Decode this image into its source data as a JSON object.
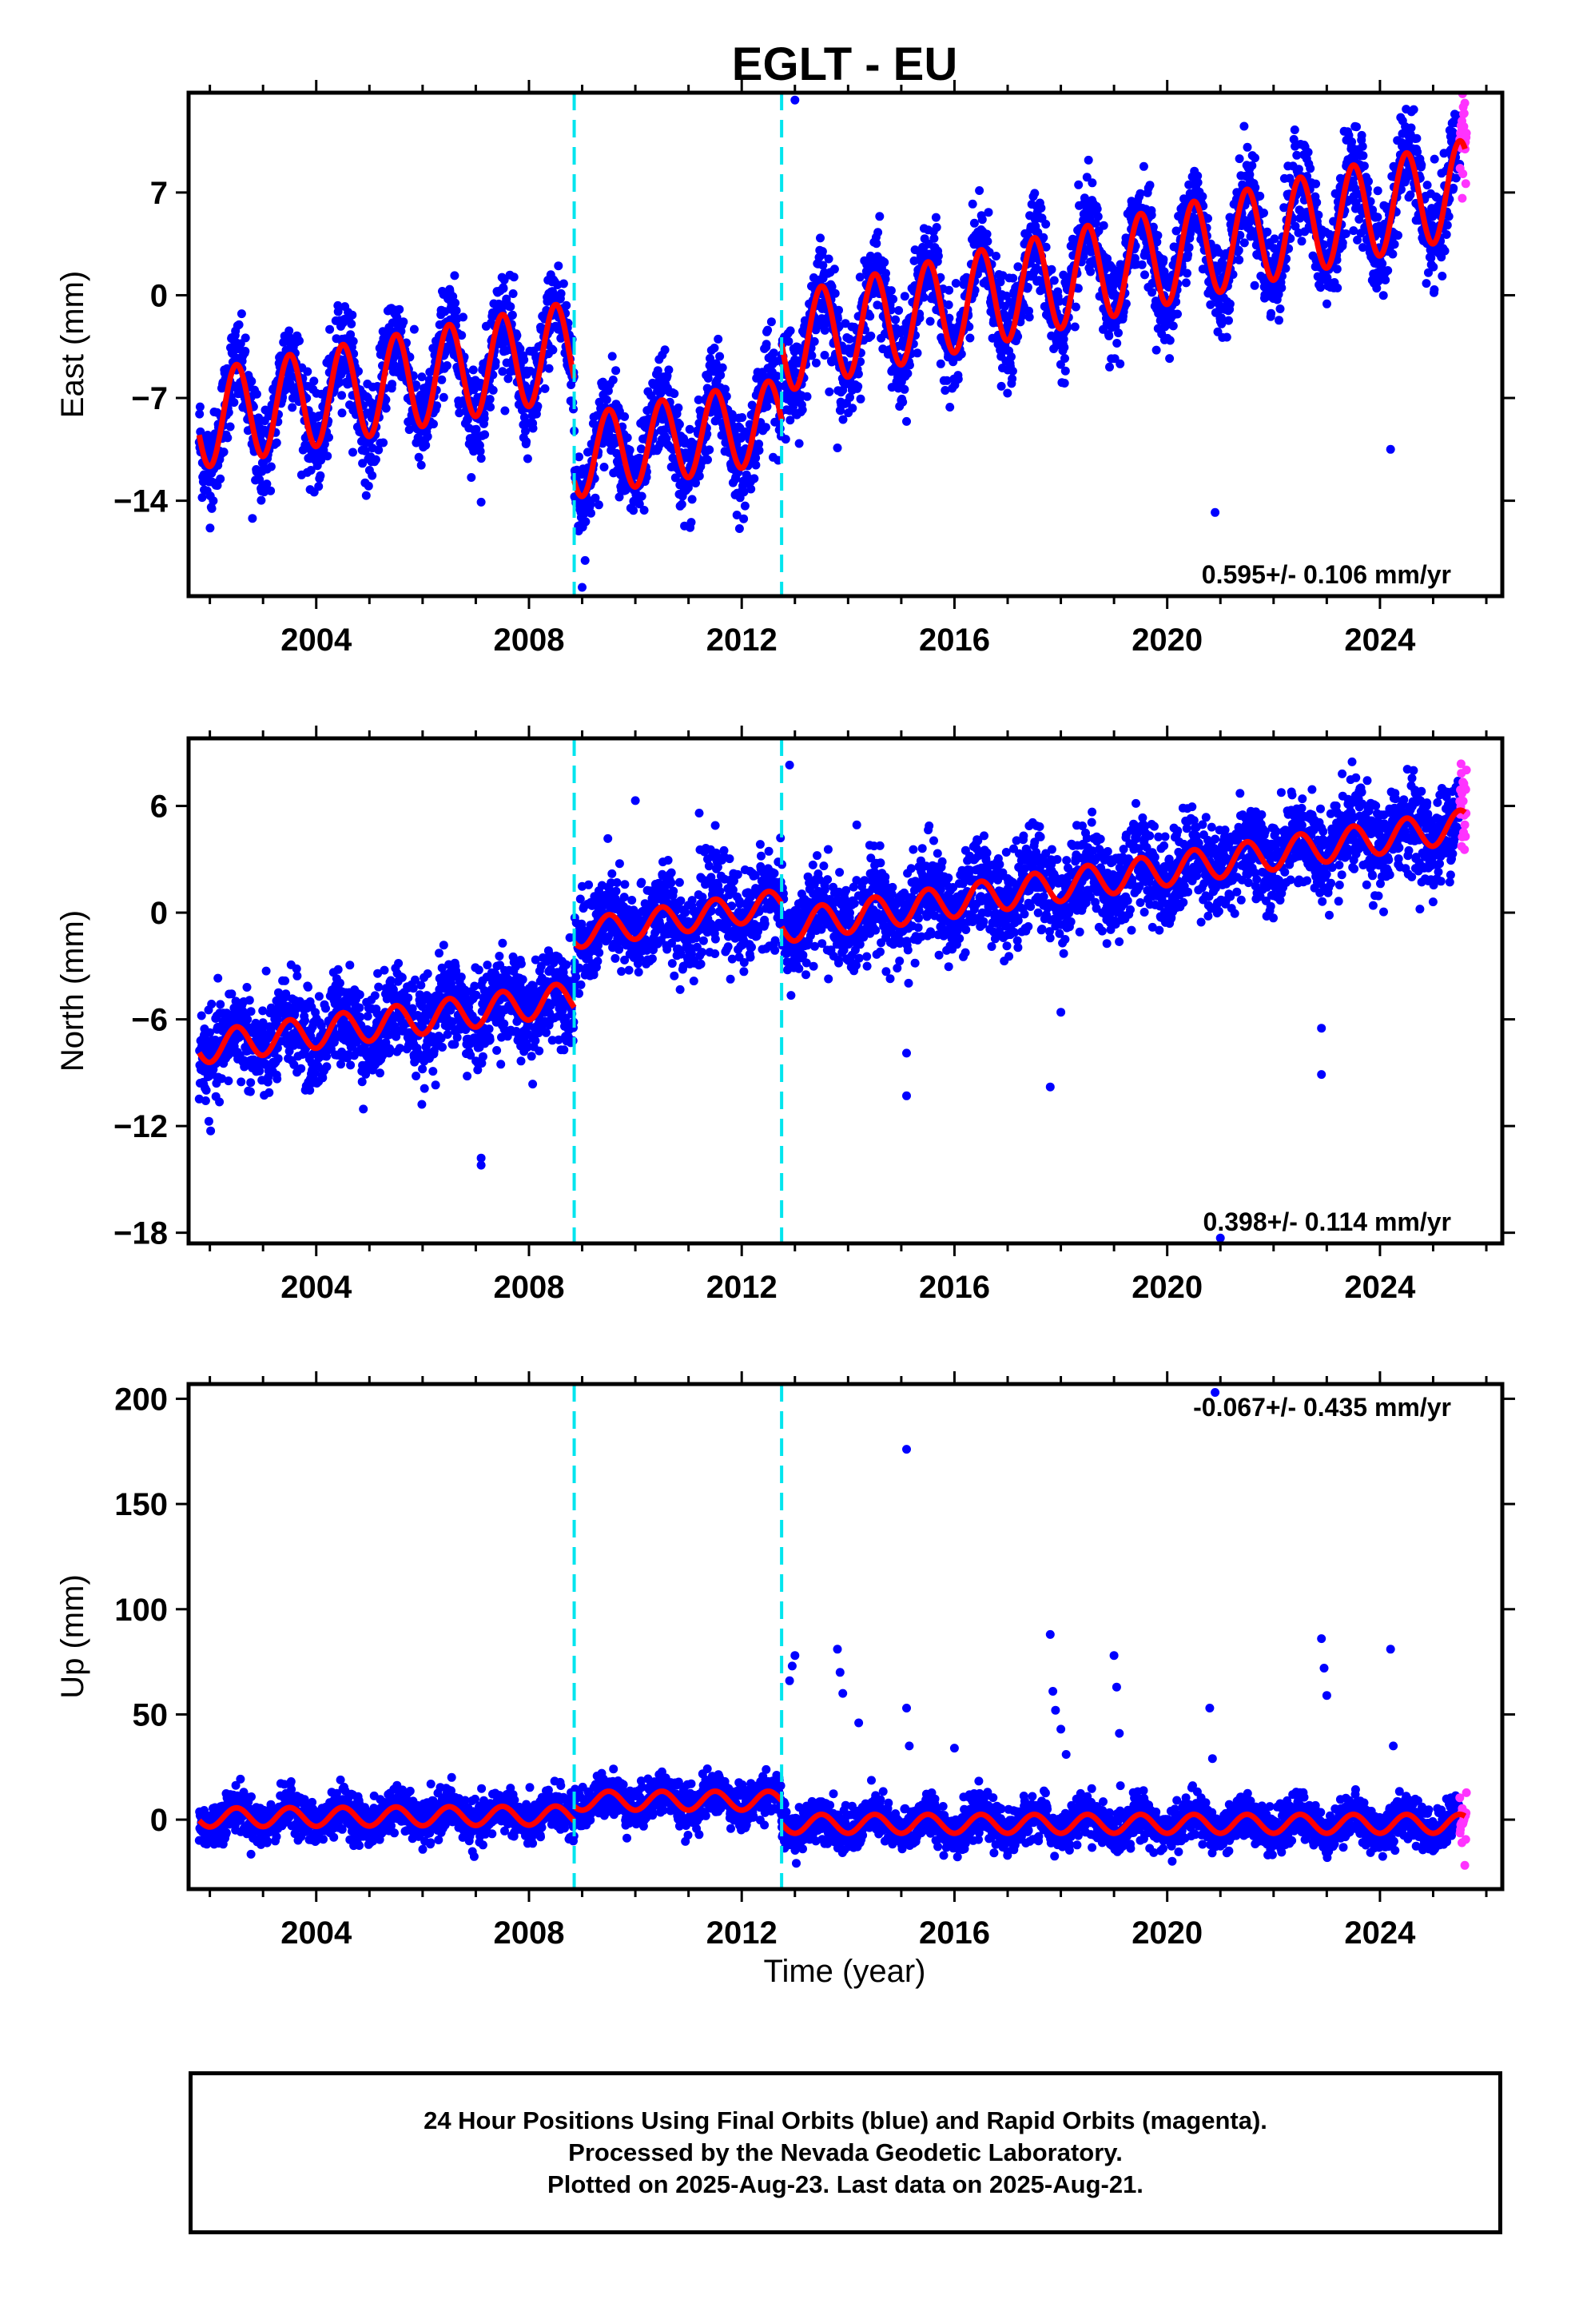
{
  "title": "EGLT - EU",
  "x_axis_title": "Time (year)",
  "footer_lines": [
    "24 Hour Positions Using Final Orbits (blue) and Rapid Orbits (magenta).",
    "Processed by the Nevada Geodetic Laboratory.",
    "Plotted on 2025-Aug-23. Last data on 2025-Aug-21."
  ],
  "colors": {
    "final_orbits": "#0000ff",
    "rapid_orbits": "#ff33ff",
    "model_fit": "#ff0000",
    "offset_lines": "#00e5ee"
  },
  "chart_data": [
    {
      "type": "scatter",
      "component": "east",
      "ylabel": "East (mm)",
      "xlim": [
        2001.6,
        2026.3
      ],
      "ylim": [
        -20.5,
        13.8
      ],
      "xticks": [
        2004,
        2008,
        2012,
        2016,
        2020,
        2024
      ],
      "yticks": [
        -14,
        -7,
        0,
        7
      ],
      "rate_label": "0.595+/- 0.106 mm/yr",
      "rate_position": "bottom-right",
      "offset_epochs": [
        2008.85,
        2012.75
      ],
      "series": [
        {
          "role": "final orbits",
          "color": "#0000ff",
          "x_range": [
            2001.8,
            2025.5
          ],
          "scatter_sd": 1.6
        },
        {
          "role": "rapid orbits",
          "color": "#ff33ff",
          "x_range": [
            2025.5,
            2025.63
          ]
        },
        {
          "role": "model fit",
          "color": "#ff0000",
          "segments": [
            {
              "x_range": [
                2001.8,
                2008.85
              ],
              "start_y": -8.5,
              "end_y": -3.7,
              "seasonal_amplitude": 3.3
            },
            {
              "x_range": [
                2008.85,
                2012.75
              ],
              "start_y": -11.0,
              "end_y": -8.5,
              "seasonal_amplitude": 2.8
            },
            {
              "x_range": [
                2012.75,
                2025.6
              ],
              "start_y": -3.3,
              "end_y": 7.3,
              "seasonal_amplitude": 3.3
            }
          ]
        }
      ],
      "outliers": [
        [
          2002.8,
          -15.2
        ],
        [
          2007.1,
          -14.1
        ],
        [
          2013.8,
          -10.4
        ],
        [
          2015.1,
          -8.6
        ],
        [
          2020.9,
          -14.8
        ],
        [
          2024.2,
          -10.5
        ],
        [
          2009.0,
          -19.9
        ],
        [
          2013.0,
          13.3
        ]
      ]
    },
    {
      "type": "scatter",
      "component": "north",
      "ylabel": "North (mm)",
      "xlim": [
        2001.6,
        2026.3
      ],
      "ylim": [
        -18.6,
        9.8
      ],
      "xticks": [
        2004,
        2008,
        2012,
        2016,
        2020,
        2024
      ],
      "yticks": [
        -18,
        -12,
        -6,
        0,
        6
      ],
      "rate_label": "0.398+/- 0.114 mm/yr",
      "rate_position": "bottom-right",
      "offset_epochs": [
        2008.85,
        2012.75
      ],
      "series": [
        {
          "role": "final orbits",
          "color": "#0000ff",
          "x_range": [
            2001.8,
            2025.5
          ],
          "scatter_sd": 1.3
        },
        {
          "role": "rapid orbits",
          "color": "#ff33ff",
          "x_range": [
            2025.5,
            2025.63
          ]
        },
        {
          "role": "model fit",
          "color": "#ff0000",
          "segments": [
            {
              "x_range": [
                2001.8,
                2008.85
              ],
              "start_y": -7.6,
              "end_y": -4.8,
              "seasonal_amplitude": 0.9
            },
            {
              "x_range": [
                2008.85,
                2012.75
              ],
              "start_y": -1.2,
              "end_y": 0.5,
              "seasonal_amplitude": 0.8
            },
            {
              "x_range": [
                2012.75,
                2025.6
              ],
              "start_y": -0.8,
              "end_y": 4.9,
              "seasonal_amplitude": 0.9
            }
          ]
        }
      ],
      "outliers": [
        [
          2007.1,
          -13.8
        ],
        [
          2007.1,
          -14.2
        ],
        [
          2010.0,
          6.3
        ],
        [
          2011.2,
          5.6
        ],
        [
          2015.1,
          -7.9
        ],
        [
          2015.1,
          -10.3
        ],
        [
          2017.8,
          -9.8
        ],
        [
          2018.0,
          -5.6
        ],
        [
          2022.9,
          -9.1
        ],
        [
          2022.9,
          -6.5
        ],
        [
          2012.9,
          8.3
        ],
        [
          2021.0,
          -18.3
        ]
      ]
    },
    {
      "type": "scatter",
      "component": "up",
      "ylabel": "Up (mm)",
      "xlim": [
        2001.6,
        2026.3
      ],
      "ylim": [
        -33,
        207
      ],
      "xticks": [
        2004,
        2008,
        2012,
        2016,
        2020,
        2024
      ],
      "yticks": [
        0,
        50,
        100,
        150,
        200
      ],
      "rate_label": "-0.067+/- 0.435 mm/yr",
      "rate_position": "top-right",
      "offset_epochs": [
        2008.85,
        2012.75
      ],
      "series": [
        {
          "role": "final orbits",
          "color": "#0000ff",
          "x_range": [
            2001.8,
            2025.5
          ],
          "scatter_sd": 5.0
        },
        {
          "role": "rapid orbits",
          "color": "#ff33ff",
          "x_range": [
            2025.5,
            2025.63
          ]
        },
        {
          "role": "model fit",
          "color": "#ff0000",
          "segments": [
            {
              "x_range": [
                2001.8,
                2008.85
              ],
              "start_y": 1.0,
              "end_y": 2.0,
              "seasonal_amplitude": 4.5
            },
            {
              "x_range": [
                2008.85,
                2012.75
              ],
              "start_y": 9.0,
              "end_y": 9.0,
              "seasonal_amplitude": 4.5
            },
            {
              "x_range": [
                2012.75,
                2025.6
              ],
              "start_y": -2.0,
              "end_y": -2.0,
              "seasonal_amplitude": 4.5
            }
          ]
        }
      ],
      "outliers": [
        [
          2012.9,
          66
        ],
        [
          2012.95,
          73
        ],
        [
          2013.0,
          78
        ],
        [
          2013.8,
          81
        ],
        [
          2013.85,
          70
        ],
        [
          2013.9,
          60
        ],
        [
          2014.2,
          46
        ],
        [
          2015.1,
          176
        ],
        [
          2015.1,
          53
        ],
        [
          2015.15,
          35
        ],
        [
          2016.0,
          34
        ],
        [
          2017.8,
          88
        ],
        [
          2017.85,
          61
        ],
        [
          2017.9,
          52
        ],
        [
          2018.0,
          43
        ],
        [
          2018.1,
          31
        ],
        [
          2019.0,
          78
        ],
        [
          2019.05,
          63
        ],
        [
          2019.1,
          41
        ],
        [
          2020.8,
          53
        ],
        [
          2020.85,
          29
        ],
        [
          2022.9,
          86
        ],
        [
          2022.95,
          72
        ],
        [
          2023.0,
          59
        ],
        [
          2024.2,
          81
        ],
        [
          2024.25,
          35
        ],
        [
          2020.9,
          203
        ]
      ]
    }
  ]
}
